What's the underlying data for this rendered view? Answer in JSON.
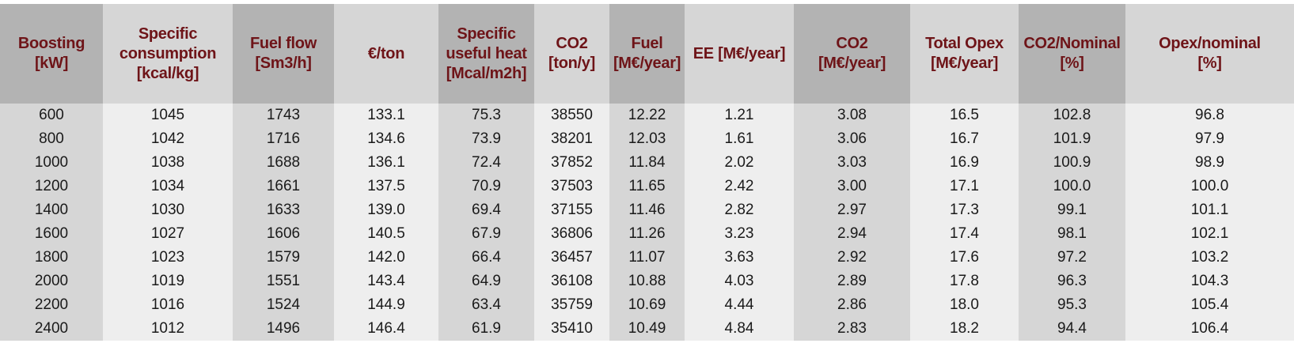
{
  "columns": [
    {
      "line1": "Boosting",
      "line2": "[kW]"
    },
    {
      "line1": "Specific",
      "line2": "consumption",
      "line3": "[kcal/kg]"
    },
    {
      "line1": "Fuel flow",
      "line2": "[Sm3/h]"
    },
    {
      "line1": "€/ton"
    },
    {
      "line1": "Specific",
      "line2": "useful heat",
      "line3": "[Mcal/m2h]"
    },
    {
      "line1": "CO2",
      "line2": "[ton/y]"
    },
    {
      "line1": "Fuel",
      "line2": "[M€/year]"
    },
    {
      "line1": "EE [M€/year]"
    },
    {
      "line1": "CO2",
      "line2": "[M€/year]"
    },
    {
      "line1": "Total Opex",
      "line2": "[M€/year]"
    },
    {
      "line1": "CO2/Nominal",
      "line2": "[%]"
    },
    {
      "line1": "Opex/nominal",
      "line2": "[%]"
    }
  ],
  "rows": [
    [
      "600",
      "1045",
      "1743",
      "133.1",
      "75.3",
      "38550",
      "12.22",
      "1.21",
      "3.08",
      "16.5",
      "102.8",
      "96.8"
    ],
    [
      "800",
      "1042",
      "1716",
      "134.6",
      "73.9",
      "38201",
      "12.03",
      "1.61",
      "3.06",
      "16.7",
      "101.9",
      "97.9"
    ],
    [
      "1000",
      "1038",
      "1688",
      "136.1",
      "72.4",
      "37852",
      "11.84",
      "2.02",
      "3.03",
      "16.9",
      "100.9",
      "98.9"
    ],
    [
      "1200",
      "1034",
      "1661",
      "137.5",
      "70.9",
      "37503",
      "11.65",
      "2.42",
      "3.00",
      "17.1",
      "100.0",
      "100.0"
    ],
    [
      "1400",
      "1030",
      "1633",
      "139.0",
      "69.4",
      "37155",
      "11.46",
      "2.82",
      "2.97",
      "17.3",
      "99.1",
      "101.1"
    ],
    [
      "1600",
      "1027",
      "1606",
      "140.5",
      "67.9",
      "36806",
      "11.26",
      "3.23",
      "2.94",
      "17.4",
      "98.1",
      "102.1"
    ],
    [
      "1800",
      "1023",
      "1579",
      "142.0",
      "66.4",
      "36457",
      "11.07",
      "3.63",
      "2.92",
      "17.6",
      "97.2",
      "103.2"
    ],
    [
      "2000",
      "1019",
      "1551",
      "143.4",
      "64.9",
      "36108",
      "10.88",
      "4.03",
      "2.89",
      "17.8",
      "96.3",
      "104.3"
    ],
    [
      "2200",
      "1016",
      "1524",
      "144.9",
      "63.4",
      "35759",
      "10.69",
      "4.44",
      "2.86",
      "18.0",
      "95.3",
      "105.4"
    ],
    [
      "2400",
      "1012",
      "1496",
      "146.4",
      "61.9",
      "35410",
      "10.49",
      "4.84",
      "2.83",
      "18.2",
      "94.4",
      "106.4"
    ]
  ],
  "colors": {
    "header_text": "#6e1418",
    "header_light": "#d6d6d6",
    "header_dark": "#b3b3b3",
    "body_light": "#eeeeee",
    "body_dark": "#d6d6d6"
  }
}
